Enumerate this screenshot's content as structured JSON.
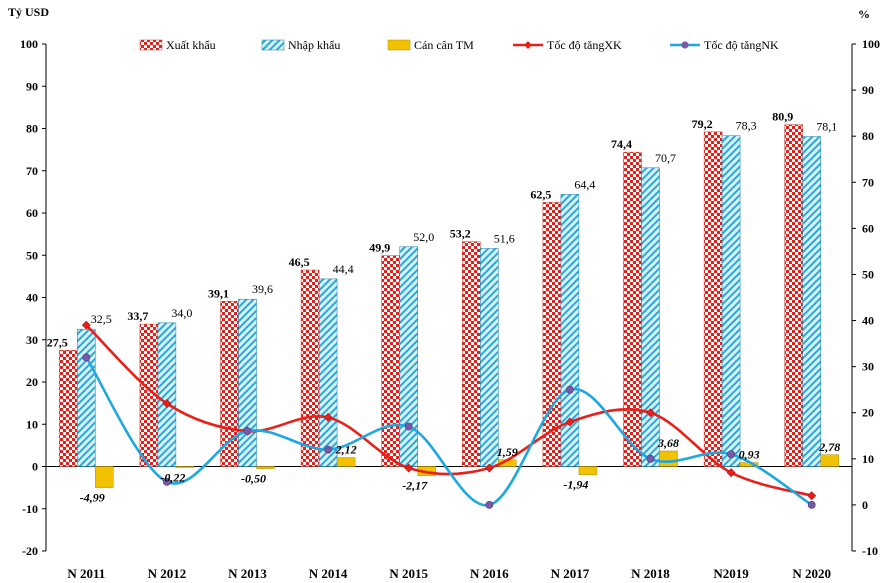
{
  "chart_data": {
    "type": "bar+line",
    "left_axis_unit": "Tỷ USD",
    "right_axis_unit": "%",
    "ylim_left": [
      -20,
      100
    ],
    "ylim_right": [
      -10,
      100
    ],
    "left_ticks": [
      100,
      90,
      80,
      70,
      60,
      50,
      40,
      30,
      20,
      10,
      0,
      -10,
      -20
    ],
    "right_ticks": [
      100,
      90,
      80,
      70,
      60,
      50,
      40,
      30,
      20,
      10,
      0,
      -10
    ],
    "categories": [
      "N 2011",
      "N 2012",
      "N 2013",
      "N 2014",
      "N 2015",
      "N 2016",
      "N 2017",
      "N 2018",
      "N2019",
      "N 2020"
    ],
    "series": [
      {
        "name": "Xuất khẩu",
        "kind": "bar",
        "axis": "left",
        "color": "#e0201a",
        "values": [
          27.5,
          33.7,
          39.1,
          46.5,
          49.9,
          53.2,
          62.5,
          74.4,
          79.2,
          80.9
        ],
        "labels": [
          "27,5",
          "33,7",
          "39,1",
          "46,5",
          "49,9",
          "53,2",
          "62,5",
          "74,4",
          "79,2",
          "80,9"
        ]
      },
      {
        "name": "Nhập khẩu",
        "kind": "bar",
        "axis": "left",
        "color": "#2aa9d8",
        "values": [
          32.5,
          34.0,
          39.6,
          44.4,
          52.0,
          51.6,
          64.4,
          70.7,
          78.3,
          78.1
        ],
        "labels": [
          "32,5",
          "34,0",
          "39,6",
          "44,4",
          "52,0",
          "51,6",
          "64,4",
          "70,7",
          "78,3",
          "78,1"
        ]
      },
      {
        "name": "Cán cân TM",
        "kind": "bar",
        "axis": "left",
        "color": "#f2c200",
        "values": [
          -4.99,
          -0.22,
          -0.5,
          2.12,
          -2.17,
          1.59,
          -1.94,
          3.68,
          0.93,
          2.78
        ],
        "labels": [
          "-4,99",
          "-0,22",
          "-0,50",
          "2,12",
          "-2,17",
          "1,59",
          "-1,94",
          "3,68",
          "0,93",
          "2,78"
        ]
      },
      {
        "name": "Tốc độ tăngXK",
        "kind": "line",
        "axis": "right",
        "color": "#e8201a",
        "values": [
          39,
          22,
          16,
          19,
          8,
          8,
          18,
          20,
          7,
          2
        ]
      },
      {
        "name": "Tốc độ tăngNK",
        "kind": "line",
        "axis": "right",
        "color": "#1ea7e1",
        "values": [
          32,
          5,
          16,
          12,
          17,
          0,
          25,
          10,
          11,
          0
        ]
      }
    ]
  }
}
